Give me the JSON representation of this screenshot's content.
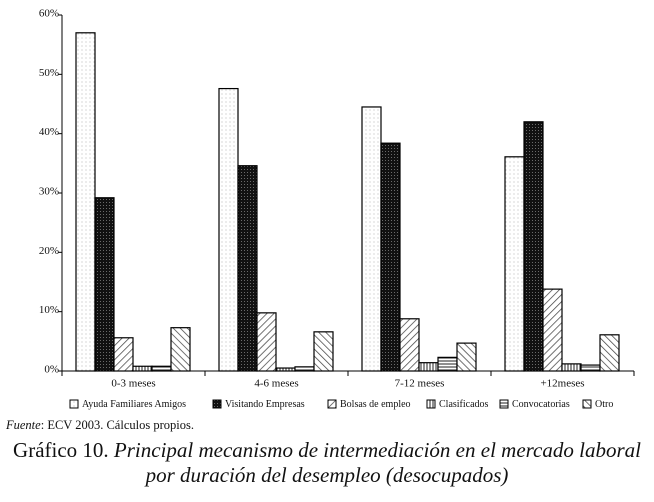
{
  "chart_data": {
    "type": "bar",
    "categories": [
      "0-3 meses",
      "4-6 meses",
      "7-12 meses",
      "+12meses"
    ],
    "series": [
      {
        "name": "Ayuda Familiares Amigos",
        "color": "#ffffff",
        "pattern": "dots",
        "values": [
          57,
          47.6,
          44.5,
          36.1
        ]
      },
      {
        "name": "Visitando Empresas",
        "color": "#111111",
        "pattern": "dense-dots",
        "values": [
          29.2,
          34.6,
          38.4,
          42
        ]
      },
      {
        "name": "Bolsas de empleo",
        "color": "#ffffff",
        "pattern": "diagonal",
        "values": [
          5.6,
          9.8,
          8.8,
          13.8
        ]
      },
      {
        "name": "Clasificados",
        "color": "#ffffff",
        "pattern": "vertical",
        "values": [
          0.8,
          0.5,
          1.4,
          1.2
        ]
      },
      {
        "name": "Convocatorias",
        "color": "#ffffff",
        "pattern": "horizontal",
        "values": [
          0.8,
          0.7,
          2.3,
          1
        ]
      },
      {
        "name": "Otro",
        "color": "#ffffff",
        "pattern": "back-diagonal",
        "values": [
          7.3,
          6.6,
          4.7,
          6.1
        ]
      }
    ],
    "ylim": [
      0,
      60
    ],
    "yticks": [
      {
        "value": 0,
        "label": "0%"
      },
      {
        "value": 10,
        "label": "10%"
      },
      {
        "value": 20,
        "label": "20%"
      },
      {
        "value": 30,
        "label": "30%"
      },
      {
        "value": 40,
        "label": "40%"
      },
      {
        "value": 50,
        "label": "50%"
      },
      {
        "value": 60,
        "label": "60%"
      }
    ],
    "grid": false,
    "legend": "bottom",
    "source": {
      "label": "Fuente",
      "text": ": ECV 2003. Cálculos propios."
    },
    "caption": {
      "label": "Gráfico 10.",
      "title_lines": [
        "Principal mecanismo de intermediación en el mercado laboral",
        "por duración del desempleo (desocupados)"
      ]
    }
  }
}
